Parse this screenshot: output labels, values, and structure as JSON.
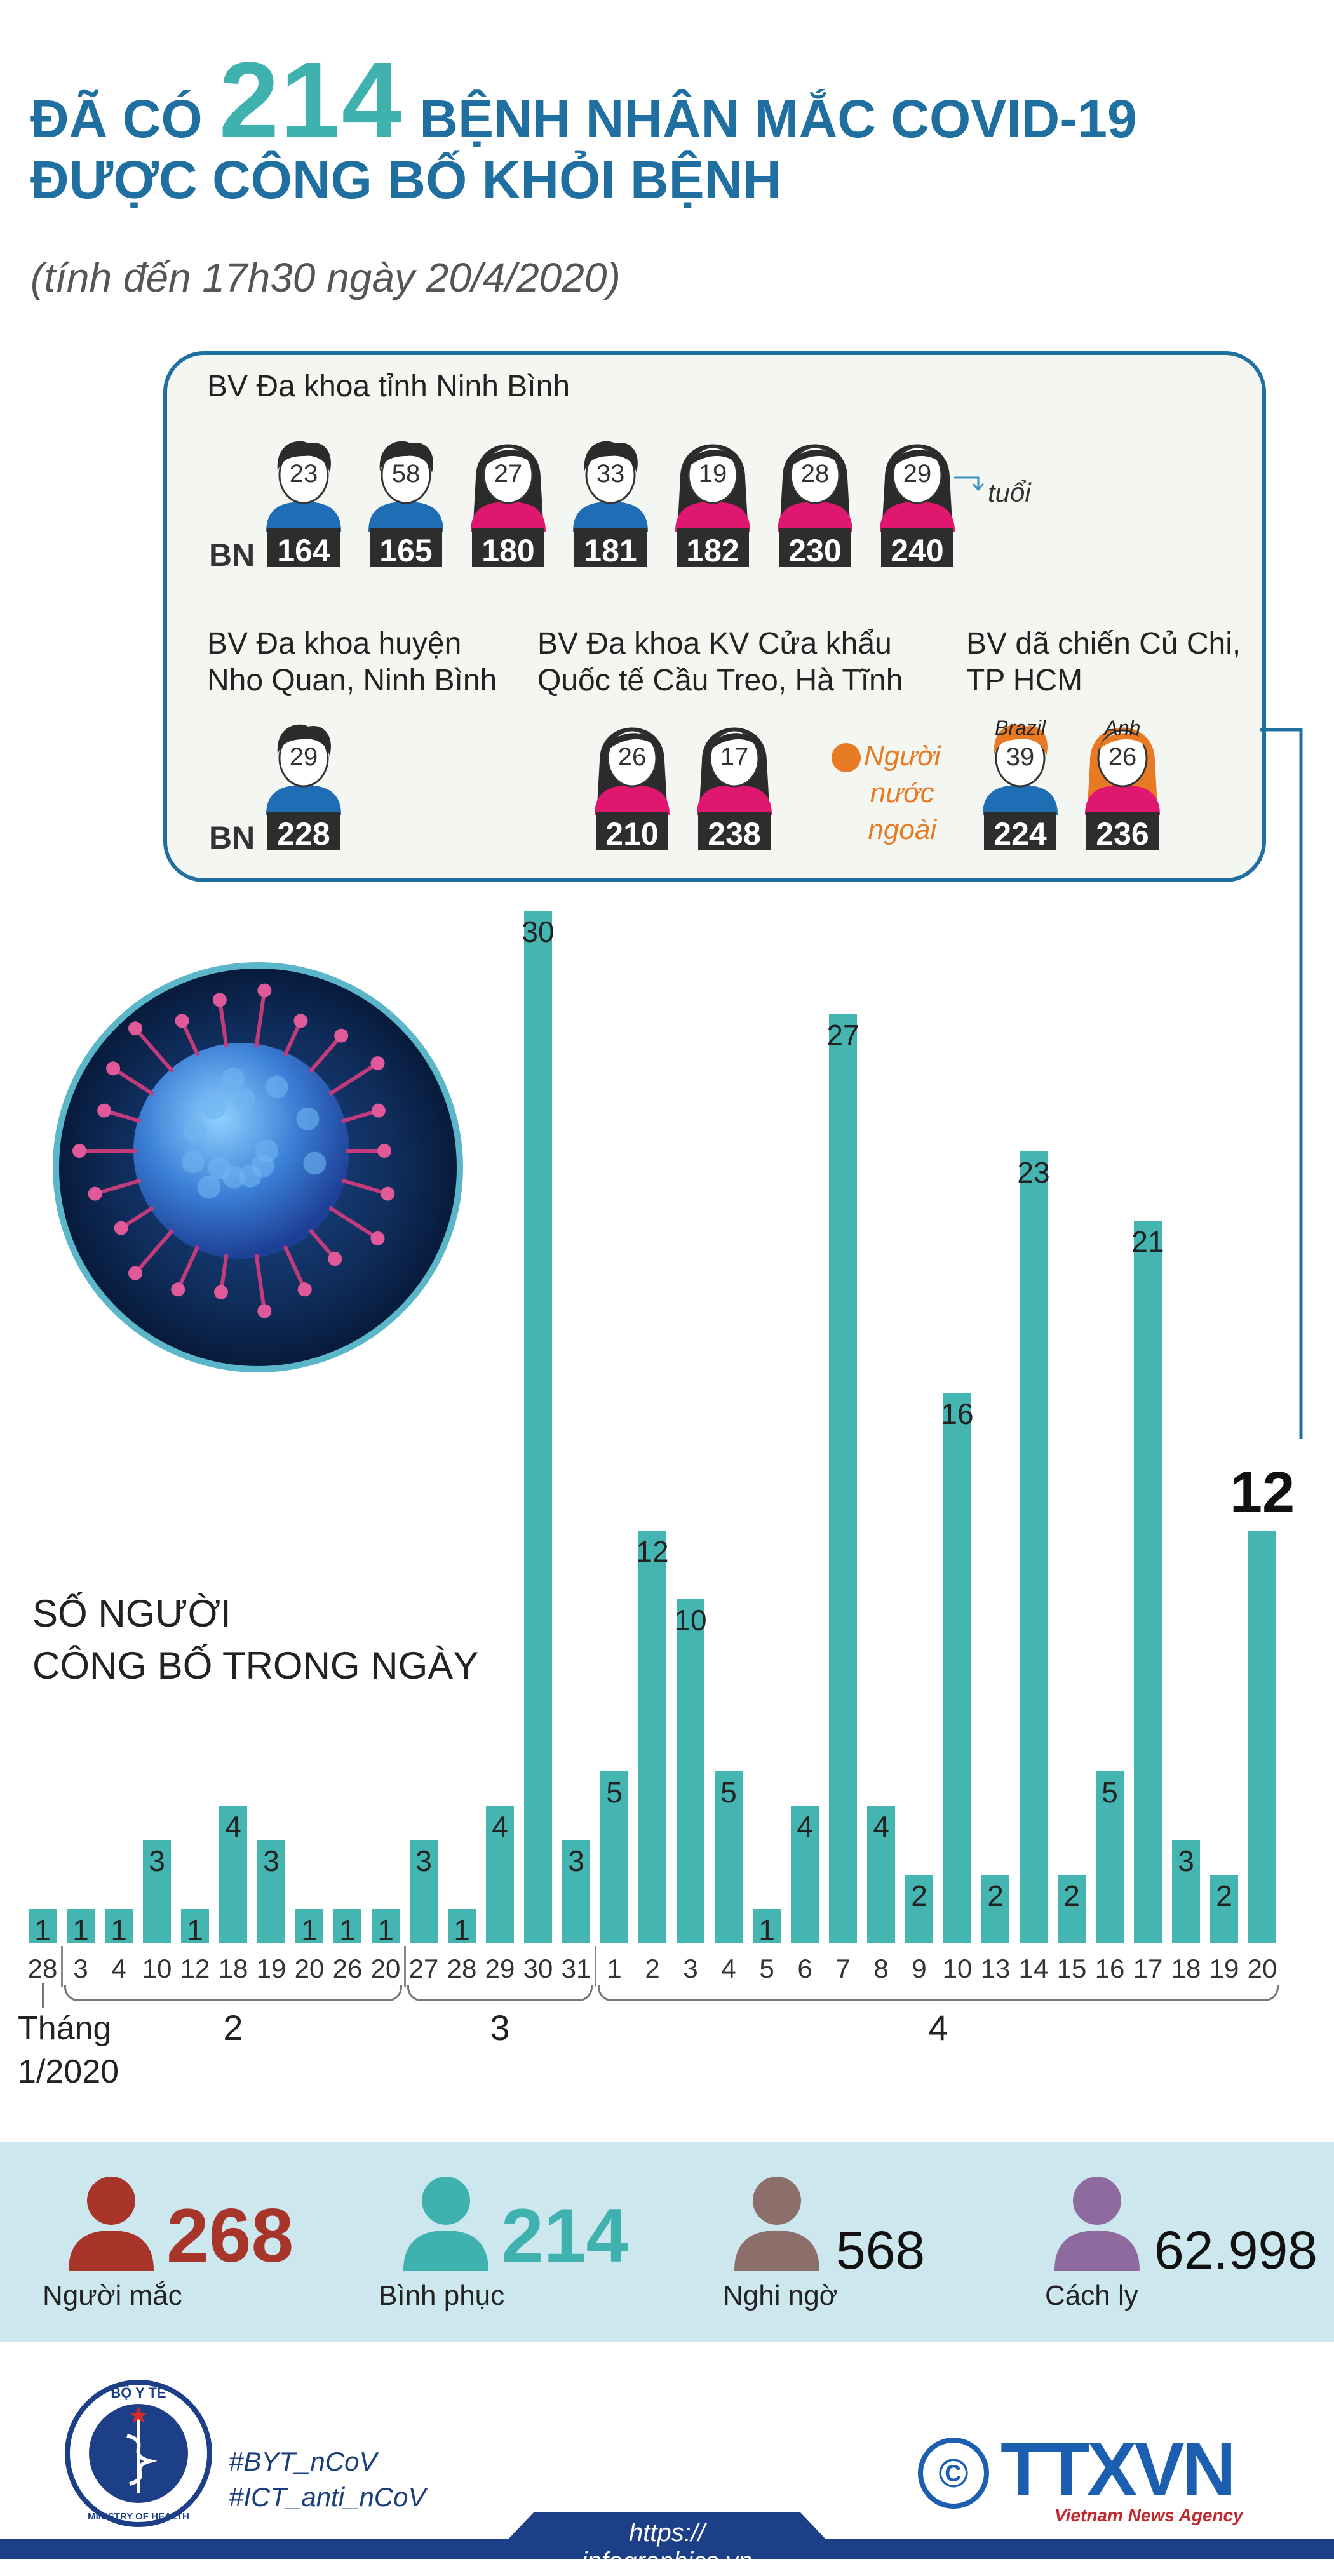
{
  "header": {
    "line1_prefix": "ĐÃ CÓ",
    "highlight": "214",
    "line1_suffix": "BỆNH NHÂN MẮC COVID-19",
    "line2": "ĐƯỢC CÔNG BỐ KHỎI BỆNH",
    "subtitle": "(tính đến 17h30 ngày 20/4/2020)"
  },
  "patients": {
    "id_prefix": "BN",
    "age_unit": "tuổi",
    "foreign_legend": "Người\nnước\nngoài",
    "foreign_color": "#e97a24",
    "hospitals": [
      {
        "name": "BV Đa khoa tỉnh Ninh Bình",
        "patients": [
          {
            "age": 23,
            "id": 164,
            "shirt": "#1f6db5",
            "long_hair": false
          },
          {
            "age": 58,
            "id": 165,
            "shirt": "#1f6db5",
            "long_hair": false
          },
          {
            "age": 27,
            "id": 180,
            "shirt": "#e0176f",
            "long_hair": true
          },
          {
            "age": 33,
            "id": 181,
            "shirt": "#1f6db5",
            "long_hair": false
          },
          {
            "age": 19,
            "id": 182,
            "shirt": "#e0176f",
            "long_hair": true
          },
          {
            "age": 28,
            "id": 230,
            "shirt": "#e0176f",
            "long_hair": true
          },
          {
            "age": 29,
            "id": 240,
            "shirt": "#e0176f",
            "long_hair": true
          }
        ]
      },
      {
        "name": "BV Đa khoa huyện\nNho Quan, Ninh Bình",
        "patients": [
          {
            "age": 29,
            "id": 228,
            "shirt": "#1f6db5",
            "long_hair": false
          }
        ]
      },
      {
        "name": "BV Đa khoa KV Cửa khẩu\nQuốc tế Cầu Treo, Hà Tĩnh",
        "patients": [
          {
            "age": 26,
            "id": 210,
            "shirt": "#e0176f",
            "long_hair": true
          },
          {
            "age": 17,
            "id": 238,
            "shirt": "#e0176f",
            "long_hair": true
          }
        ]
      },
      {
        "name": "BV dã chiến Củ Chi,\nTP HCM",
        "patients": [
          {
            "age": 39,
            "id": 224,
            "shirt": "#1f6db5",
            "long_hair": false,
            "nationality": "Brazil",
            "hair": "#e97a24"
          },
          {
            "age": 26,
            "id": 236,
            "shirt": "#e0176f",
            "long_hair": true,
            "nationality": "Anh",
            "hair": "#e97a24"
          }
        ]
      }
    ]
  },
  "chart_data": {
    "type": "bar",
    "title": "SỐ NGƯỜI\nCÔNG BỐ TRONG NGÀY",
    "color": "#45b5b1",
    "ylim": [
      0,
      30
    ],
    "groups": [
      {
        "name": "Tháng\n1/2020",
        "categories": [
          "28"
        ],
        "values": [
          1
        ]
      },
      {
        "name": "2",
        "categories": [
          "3",
          "4",
          "10",
          "12",
          "18",
          "19",
          "20",
          "26",
          "20"
        ],
        "values": [
          1,
          1,
          3,
          1,
          4,
          3,
          1,
          1,
          1
        ]
      },
      {
        "name": "3",
        "categories": [
          "27",
          "28",
          "29",
          "30",
          "31"
        ],
        "values": [
          3,
          1,
          4,
          30,
          3
        ]
      },
      {
        "name": "4",
        "categories": [
          "1",
          "2",
          "3",
          "4",
          "5",
          "6",
          "7",
          "8",
          "9",
          "10",
          "13",
          "14",
          "15",
          "16",
          "17",
          "18",
          "19",
          "20"
        ],
        "values": [
          5,
          12,
          10,
          5,
          1,
          4,
          27,
          4,
          2,
          16,
          2,
          23,
          2,
          5,
          21,
          3,
          2,
          12
        ]
      }
    ]
  },
  "stats": [
    {
      "value": "268",
      "label": "Người mắc",
      "color": "#a8352a"
    },
    {
      "value": "214",
      "label": "Bình phục",
      "color": "#3fb2b0"
    },
    {
      "value": "568",
      "label": "Nghi ngờ",
      "color": "#8c6f6b"
    },
    {
      "value": "62.998",
      "label": "Cách ly",
      "color": "#8e6a9e"
    }
  ],
  "footer": {
    "logo_top": "BỘ Y TẾ",
    "logo_bottom": "MINISTRY OF HEALTH",
    "hashtag1": "#BYT_nCoV",
    "hashtag2": "#ICT_anti_nCoV",
    "copyright": "©",
    "brand": "TTXVN",
    "brand_sub": "Vietnam News Agency",
    "url": "https:// infographics.vn"
  }
}
